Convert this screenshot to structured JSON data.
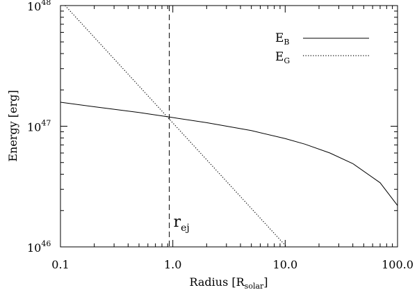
{
  "chart_data": {
    "type": "line",
    "xlabel": "Radius [R",
    "xlabel_sub": "solar",
    "xlabel_end": "]",
    "ylabel": "Energy [erg]",
    "x_scale": "log",
    "y_scale": "log",
    "xlim": [
      0.1,
      100.0
    ],
    "ylim": [
      1e+46,
      1e+48
    ],
    "x_ticks": [
      {
        "value": 0.1,
        "label": "0.1"
      },
      {
        "value": 1.0,
        "label": "1.0"
      },
      {
        "value": 10.0,
        "label": "10.0"
      },
      {
        "value": 100.0,
        "label": "100.0"
      }
    ],
    "y_ticks": [
      {
        "value": 1e+46,
        "base": "10",
        "exp": "46"
      },
      {
        "value": 1e+47,
        "base": "10",
        "exp": "47"
      },
      {
        "value": 1e+48,
        "base": "10",
        "exp": "48"
      }
    ],
    "grid": false,
    "legend_position": "top-right",
    "series": [
      {
        "name": "E",
        "name_sub": "B",
        "style": "solid",
        "color": "#000000",
        "x": [
          0.1,
          0.2,
          0.5,
          1.0,
          2.0,
          5.0,
          10.0,
          15.0,
          25.0,
          40.0,
          70.0,
          100.0
        ],
        "y": [
          1.58e+47,
          1.45e+47,
          1.3e+47,
          1.18e+47,
          1.07e+47,
          9.2e+46,
          7.9e+46,
          7.1e+46,
          6e+46,
          4.9e+46,
          3.4e+46,
          2.2e+46
        ]
      },
      {
        "name": "E",
        "name_sub": "G",
        "style": "dotted",
        "color": "#000000",
        "x": [
          0.11,
          10.3
        ],
        "y": [
          1e+48,
          1e+46
        ]
      }
    ],
    "annotations": [
      {
        "text": "r",
        "sub": "ej",
        "x": 0.93,
        "line": "vertical-dashed"
      }
    ]
  }
}
